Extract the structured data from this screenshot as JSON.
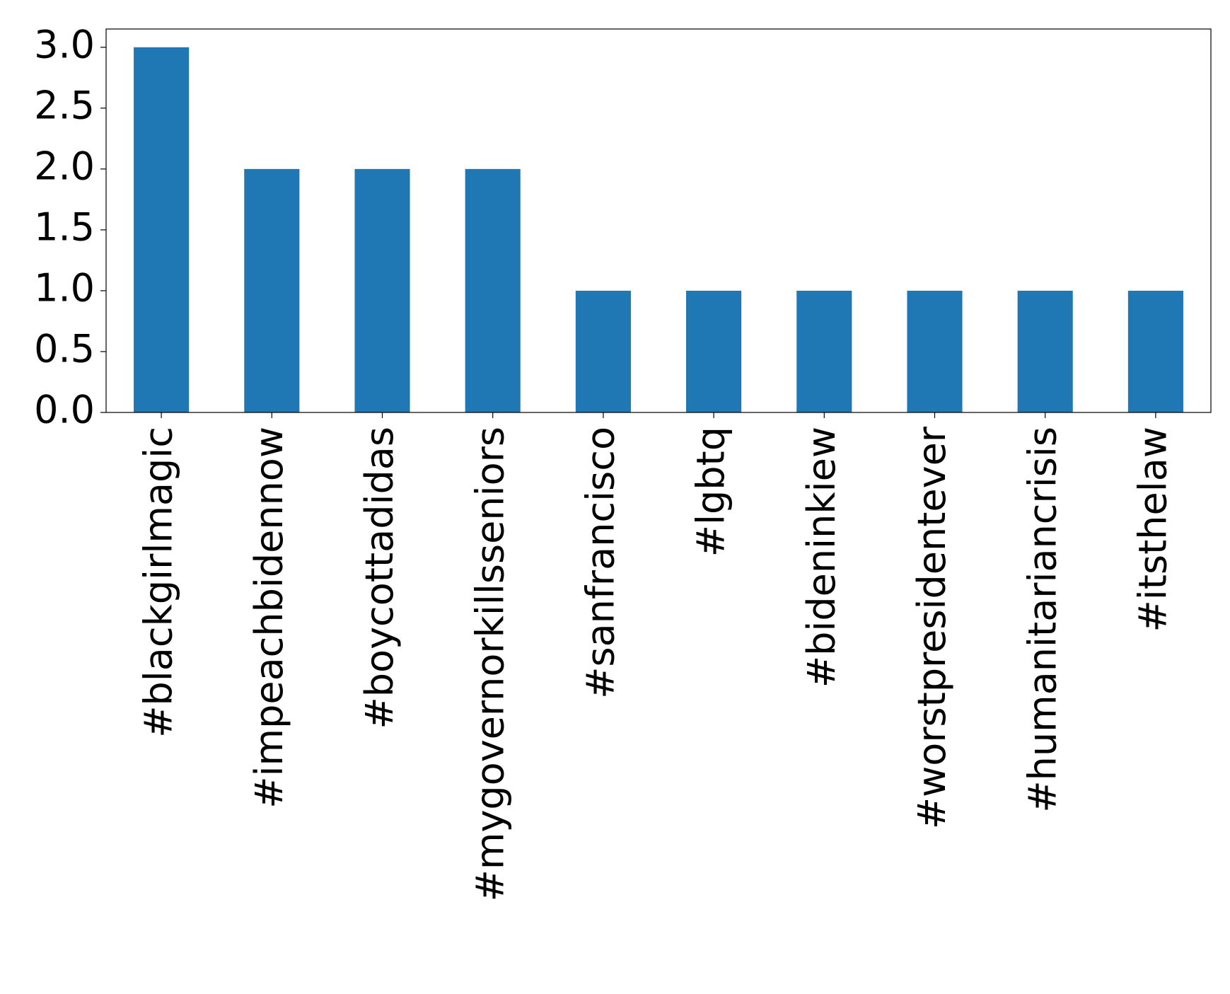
{
  "chart_data": {
    "type": "bar",
    "categories": [
      "#blackgirlmagic",
      "#impeachbidennow",
      "#boycottadidas",
      "#mygovernorkillsseniors",
      "#sanfrancisco",
      "#lgbtq",
      "#bideninkiew",
      "#worstpresidentever",
      "#humanitariancrisis",
      "#itsthelaw"
    ],
    "values": [
      3,
      2,
      2,
      2,
      1,
      1,
      1,
      1,
      1,
      1
    ],
    "color": "#1f77b4",
    "ylim": [
      0,
      3.15
    ],
    "yticks": [
      {
        "value": 0,
        "label": "0.0"
      },
      0.5,
      {
        "value": 1,
        "label": "1.0"
      },
      1.5,
      {
        "value": 2,
        "label": "2.0"
      },
      2.5,
      {
        "value": 3,
        "label": "3.0"
      }
    ],
    "grid": false
  }
}
